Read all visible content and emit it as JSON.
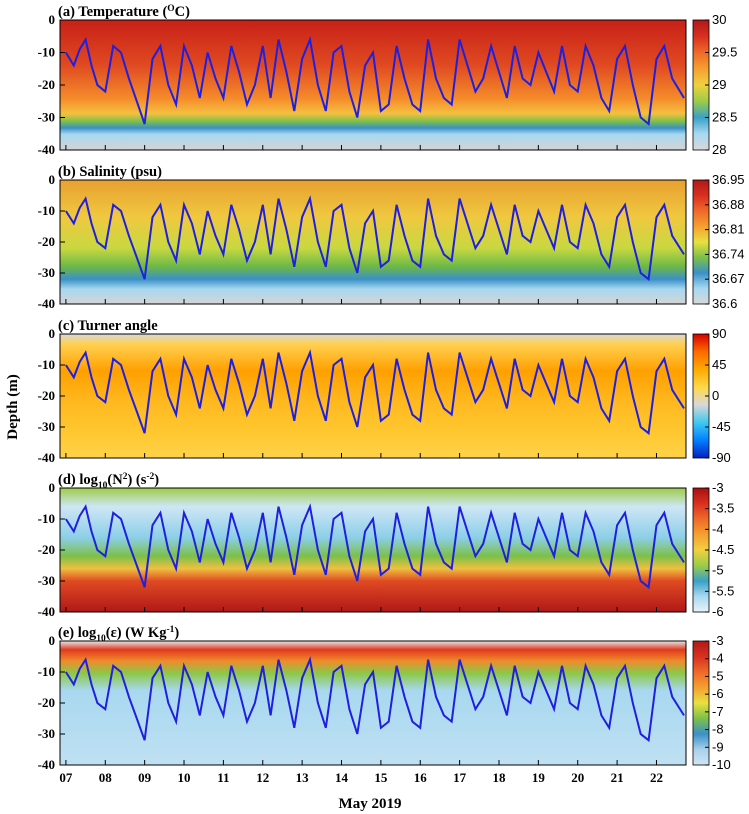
{
  "figure": {
    "ylabel": "Depth (m)",
    "xlabel": "May 2019",
    "x_ticks": [
      "07",
      "08",
      "09",
      "10",
      "11",
      "12",
      "13",
      "14",
      "15",
      "16",
      "17",
      "18",
      "19",
      "20",
      "21",
      "22"
    ],
    "y_ticks": [
      "0",
      "-10",
      "-20",
      "-30",
      "-40"
    ]
  },
  "chart_data": [
    {
      "type": "heatmap",
      "panel": "a",
      "title_main": "(a) Temperature (",
      "title_sup": "O",
      "title_end": "C)",
      "ylim": [
        -40,
        0
      ],
      "colorbar_ticks": [
        "30",
        "29.5",
        "29",
        "28.5",
        "28"
      ],
      "colorbar_range": [
        28,
        30
      ],
      "colormap": [
        "#d4d4d4",
        "#a8d8f0",
        "#3a8fc8",
        "#54b848",
        "#e8e040",
        "#f5a030",
        "#e05525",
        "#b01818"
      ],
      "overlay": "mixed layer depth (blue line)",
      "markers": "black and white dots"
    },
    {
      "type": "heatmap",
      "panel": "b",
      "title_main": "(b) Salinity (psu)",
      "ylim": [
        -40,
        0
      ],
      "colorbar_ticks": [
        "36.95",
        "36.88",
        "36.81",
        "36.74",
        "36.67",
        "36.6"
      ],
      "colorbar_range": [
        36.6,
        36.95
      ]
    },
    {
      "type": "heatmap",
      "panel": "c",
      "title_main": "(c) Turner angle",
      "ylim": [
        -40,
        0
      ],
      "colorbar_ticks": [
        "90",
        "45",
        "0",
        "-45",
        "-90"
      ],
      "colorbar_range": [
        -90,
        90
      ]
    },
    {
      "type": "heatmap",
      "panel": "d",
      "title_main": "(d) log",
      "title_sub": "10",
      "title_end": "(N",
      "title_sup": "2",
      "title_end2": ") (s",
      "title_sup2": "-2",
      "title_end3": ")",
      "ylim": [
        -40,
        0
      ],
      "colorbar_ticks": [
        "-3",
        "-3.5",
        "-4",
        "-4.5",
        "-5",
        "-5.5",
        "-6"
      ],
      "colorbar_range": [
        -6,
        -3
      ]
    },
    {
      "type": "heatmap",
      "panel": "e",
      "title_main": "(e) log",
      "title_sub": "10",
      "title_end": "(ε) (W Kg",
      "title_sup": "-1",
      "title_end2": ")",
      "ylim": [
        -40,
        0
      ],
      "colorbar_ticks": [
        "-3",
        "-4",
        "-5",
        "-6",
        "-7",
        "-8",
        "-9",
        "-10"
      ],
      "colorbar_range": [
        -10,
        -3
      ]
    }
  ],
  "mld": {
    "label": "mixed layer depth",
    "color": "#1f1fe0",
    "days": [
      7.0,
      7.2,
      7.35,
      7.5,
      7.65,
      7.8,
      8.0,
      8.2,
      8.4,
      8.6,
      8.8,
      9.0,
      9.2,
      9.4,
      9.6,
      9.8,
      10.0,
      10.2,
      10.4,
      10.6,
      10.8,
      11.0,
      11.2,
      11.4,
      11.6,
      11.8,
      12.0,
      12.2,
      12.4,
      12.6,
      12.8,
      13.0,
      13.2,
      13.4,
      13.6,
      13.8,
      14.0,
      14.2,
      14.4,
      14.6,
      14.8,
      15.0,
      15.2,
      15.4,
      15.6,
      15.8,
      16.0,
      16.2,
      16.4,
      16.6,
      16.8,
      17.0,
      17.2,
      17.4,
      17.6,
      17.8,
      18.0,
      18.2,
      18.4,
      18.6,
      18.8,
      19.0,
      19.2,
      19.4,
      19.6,
      19.8,
      20.0,
      20.2,
      20.4,
      20.6,
      20.8,
      21.0,
      21.2,
      21.4,
      21.6,
      21.8,
      22.0,
      22.2,
      22.4,
      22.7
    ],
    "depths": [
      -10,
      -14,
      -9,
      -6,
      -14,
      -20,
      -22,
      -8,
      -10,
      -18,
      -25,
      -32,
      -12,
      -8,
      -20,
      -26,
      -8,
      -14,
      -24,
      -10,
      -18,
      -24,
      -8,
      -16,
      -26,
      -20,
      -8,
      -24,
      -6,
      -16,
      -28,
      -12,
      -6,
      -20,
      -28,
      -10,
      -8,
      -22,
      -30,
      -14,
      -10,
      -28,
      -26,
      -8,
      -18,
      -26,
      -28,
      -6,
      -18,
      -24,
      -26,
      -6,
      -14,
      -22,
      -18,
      -8,
      -16,
      -24,
      -8,
      -18,
      -20,
      -10,
      -16,
      -22,
      -8,
      -20,
      -22,
      -8,
      -14,
      -24,
      -28,
      -12,
      -8,
      -20,
      -30,
      -32,
      -12,
      -8,
      -18,
      -24
    ]
  }
}
